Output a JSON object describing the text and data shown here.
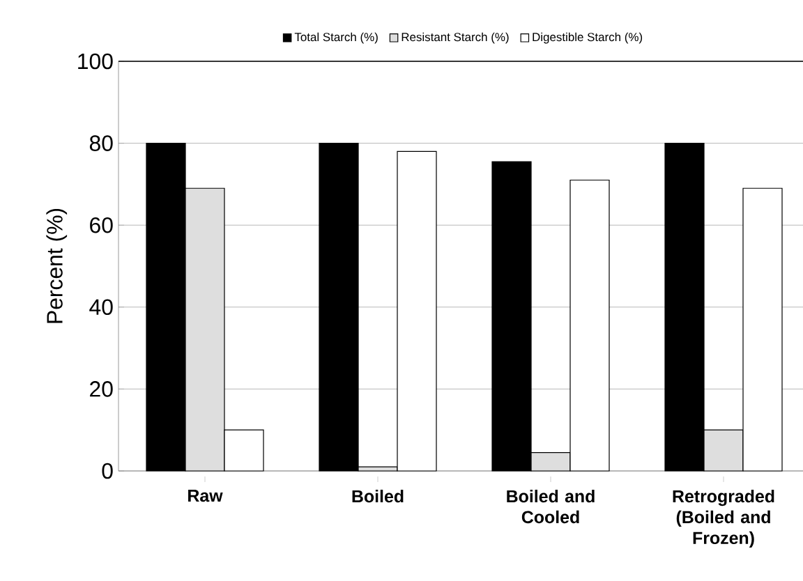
{
  "chart_data": {
    "type": "bar",
    "ylabel": "Percent (%)",
    "categories": [
      "Raw",
      "Boiled",
      "Boiled and Cooled",
      "Retrograded (Boiled and Frozen)"
    ],
    "series": [
      {
        "name": "Total Starch (%)",
        "color": "#000000",
        "values": [
          80,
          80,
          75.5,
          80
        ]
      },
      {
        "name": "Resistant Starch (%)",
        "color": "#dedede",
        "values": [
          69,
          1,
          4.5,
          10
        ]
      },
      {
        "name": "Digestible Starch (%)",
        "color": "#ffffff",
        "values": [
          10,
          78,
          71,
          69
        ]
      }
    ],
    "ylim": [
      0,
      100
    ],
    "yticks": [
      0,
      20,
      40,
      60,
      80,
      100
    ],
    "grid": "y",
    "legend": "top"
  }
}
